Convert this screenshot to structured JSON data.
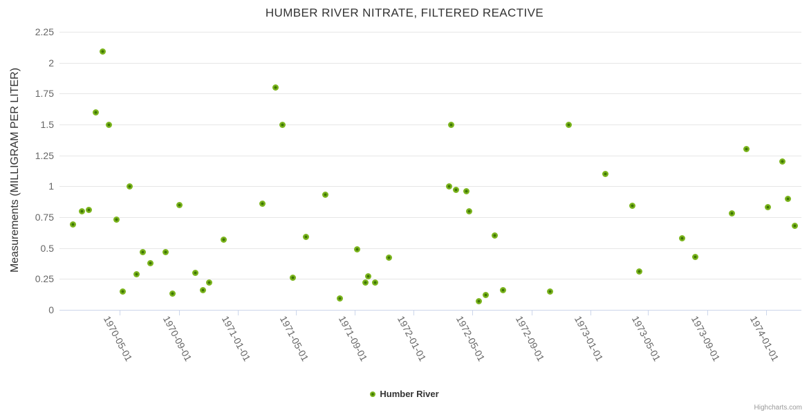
{
  "chart_data": {
    "type": "scatter",
    "title": "HUMBER RIVER NITRATE, FILTERED REACTIVE",
    "xlabel": "",
    "ylabel": "Measurements (MILLIGRAM PER LITER)",
    "x_range": [
      "1969-12-27",
      "1974-03-15"
    ],
    "ylim": [
      0,
      2.25
    ],
    "grid": "horizontal",
    "legend_position": "bottom-center",
    "y_ticks": [
      "0",
      "0.25",
      "0.5",
      "0.75",
      "1",
      "1.25",
      "1.5",
      "1.75",
      "2",
      "2.25"
    ],
    "x_ticks": [
      "1970-05-01",
      "1970-09-01",
      "1971-01-01",
      "1971-05-01",
      "1971-09-01",
      "1972-01-01",
      "1972-05-01",
      "1972-09-01",
      "1973-01-01",
      "1973-05-01",
      "1973-09-01",
      "1974-01-01"
    ],
    "series": [
      {
        "name": "Humber River",
        "color": "#7cb51e",
        "points": [
          [
            "1970-01-24",
            0.69
          ],
          [
            "1970-02-12",
            0.8
          ],
          [
            "1970-02-26",
            0.81
          ],
          [
            "1970-03-13",
            1.6
          ],
          [
            "1970-03-26",
            2.09
          ],
          [
            "1970-04-09",
            1.5
          ],
          [
            "1970-04-24",
            0.73
          ],
          [
            "1970-05-07",
            0.15
          ],
          [
            "1970-05-21",
            1.0
          ],
          [
            "1970-06-05",
            0.29
          ],
          [
            "1970-06-18",
            0.47
          ],
          [
            "1970-07-03",
            0.38
          ],
          [
            "1970-08-04",
            0.47
          ],
          [
            "1970-08-18",
            0.13
          ],
          [
            "1970-09-02",
            0.85
          ],
          [
            "1970-10-05",
            0.3
          ],
          [
            "1970-10-20",
            0.16
          ],
          [
            "1970-11-02",
            0.22
          ],
          [
            "1970-12-02",
            0.57
          ],
          [
            "1971-02-21",
            0.86
          ],
          [
            "1971-03-20",
            1.8
          ],
          [
            "1971-04-04",
            1.5
          ],
          [
            "1971-04-25",
            0.26
          ],
          [
            "1971-05-22",
            0.59
          ],
          [
            "1971-07-02",
            0.93
          ],
          [
            "1971-07-31",
            0.09
          ],
          [
            "1971-09-06",
            0.49
          ],
          [
            "1971-09-23",
            0.22
          ],
          [
            "1971-09-29",
            0.27
          ],
          [
            "1971-10-13",
            0.22
          ],
          [
            "1971-11-11",
            0.42
          ],
          [
            "1972-03-14",
            1.0
          ],
          [
            "1972-03-18",
            1.5
          ],
          [
            "1972-03-29",
            0.97
          ],
          [
            "1972-04-19",
            0.96
          ],
          [
            "1972-04-25",
            0.8
          ],
          [
            "1972-05-15",
            0.07
          ],
          [
            "1972-05-29",
            0.12
          ],
          [
            "1972-06-17",
            0.6
          ],
          [
            "1972-07-04",
            0.16
          ],
          [
            "1972-10-10",
            0.15
          ],
          [
            "1972-11-17",
            1.5
          ],
          [
            "1973-02-01",
            1.1
          ],
          [
            "1973-03-30",
            0.84
          ],
          [
            "1973-04-12",
            0.31
          ],
          [
            "1973-07-11",
            0.58
          ],
          [
            "1973-08-07",
            0.43
          ],
          [
            "1973-10-22",
            0.78
          ],
          [
            "1973-11-21",
            1.3
          ],
          [
            "1974-01-05",
            0.83
          ],
          [
            "1974-02-04",
            1.2
          ],
          [
            "1974-02-15",
            0.9
          ],
          [
            "1974-03-02",
            0.68
          ]
        ]
      }
    ]
  },
  "legend": {
    "series_label": "Humber River"
  },
  "credits": {
    "label": "Highcharts.com"
  },
  "colors": {
    "marker": "#7cb51e",
    "marker_center": "#3e7504",
    "grid": "#e6e6e6",
    "axis": "#ccd6eb",
    "title_text": "#333333",
    "label_text": "#666666",
    "credit_text": "#999999"
  }
}
